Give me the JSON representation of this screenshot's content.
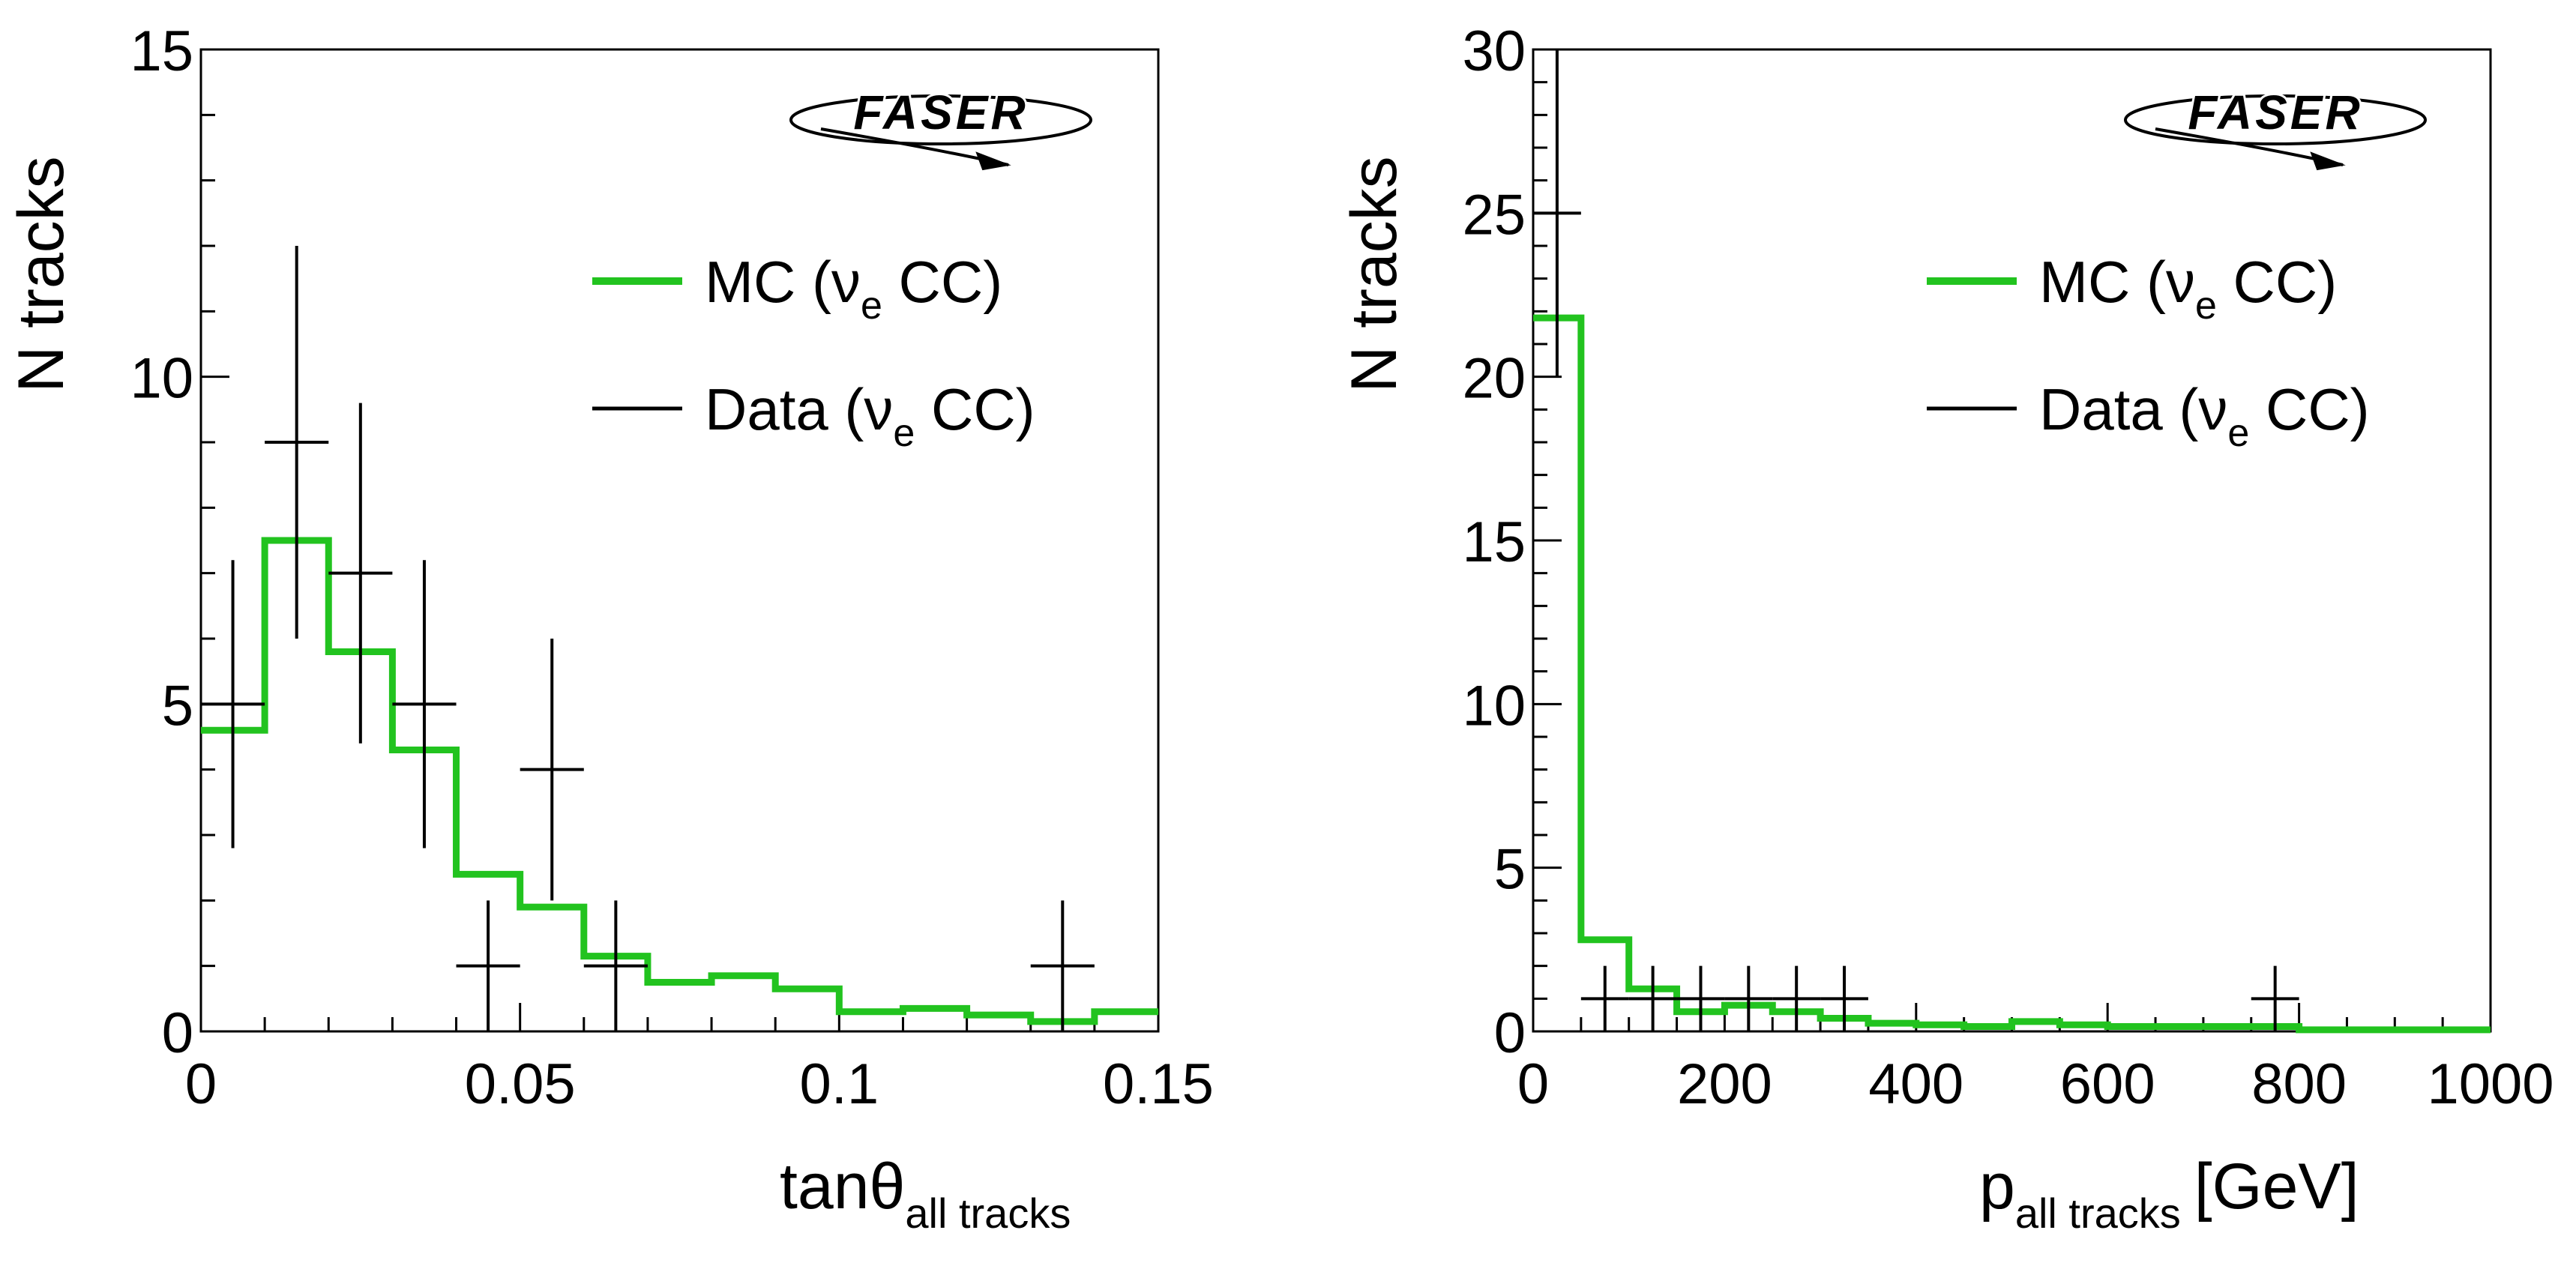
{
  "chart_data": [
    {
      "type": "histogram",
      "xlabel": "tanθ",
      "xlabel_sub": "all tracks",
      "xlabel_unit": "",
      "ylabel": "N tracks",
      "xlim": [
        0,
        0.15
      ],
      "ylim": [
        0,
        15
      ],
      "xticks": [
        {
          "value": 0,
          "label": "0"
        },
        {
          "value": 0.05,
          "label": "0.05"
        },
        {
          "value": 0.1,
          "label": "0.1"
        },
        {
          "value": 0.15,
          "label": "0.15"
        }
      ],
      "yticks": [
        {
          "value": 0,
          "label": "0"
        },
        {
          "value": 5,
          "label": "5"
        },
        {
          "value": 10,
          "label": "10"
        },
        {
          "value": 15,
          "label": "15"
        }
      ],
      "x_minor_step": 0.01,
      "y_minor_step": 1,
      "logo": "FASER",
      "legend": [
        {
          "style": "line",
          "color": "#22c31f",
          "label": "MC (ν",
          "sub": "e",
          "suffix": " CC)"
        },
        {
          "style": "line",
          "color": "#000000",
          "label": "Data (ν",
          "sub": "e",
          "suffix": " CC)"
        }
      ],
      "series": [
        {
          "name": "MC (νe CC)",
          "style": "step",
          "color": "#22c31f",
          "edges": [
            0,
            0.01,
            0.02,
            0.03,
            0.04,
            0.05,
            0.06,
            0.07,
            0.08,
            0.09,
            0.1,
            0.11,
            0.12,
            0.13,
            0.14,
            0.15
          ],
          "values": [
            4.6,
            7.5,
            5.8,
            4.3,
            2.4,
            1.9,
            1.15,
            0.75,
            0.85,
            0.65,
            0.3,
            0.35,
            0.25,
            0.15,
            0.3
          ]
        },
        {
          "name": "Data (νe CC)",
          "style": "errorbar",
          "color": "#000000",
          "points": [
            {
              "x": 0.005,
              "y": 5,
              "xerr": 0.005,
              "ylo": 2.8,
              "yhi": 7.2
            },
            {
              "x": 0.015,
              "y": 9,
              "xerr": 0.005,
              "ylo": 6.0,
              "yhi": 12.0
            },
            {
              "x": 0.025,
              "y": 7,
              "xerr": 0.005,
              "ylo": 4.4,
              "yhi": 9.6
            },
            {
              "x": 0.035,
              "y": 5,
              "xerr": 0.005,
              "ylo": 2.8,
              "yhi": 7.2
            },
            {
              "x": 0.045,
              "y": 1,
              "xerr": 0.005,
              "ylo": 0.0,
              "yhi": 2.0
            },
            {
              "x": 0.055,
              "y": 4,
              "xerr": 0.005,
              "ylo": 2.0,
              "yhi": 6.0
            },
            {
              "x": 0.065,
              "y": 1,
              "xerr": 0.005,
              "ylo": 0.0,
              "yhi": 2.0
            },
            {
              "x": 0.135,
              "y": 1,
              "xerr": 0.005,
              "ylo": 0.0,
              "yhi": 2.0
            }
          ]
        }
      ]
    },
    {
      "type": "histogram",
      "xlabel": "p",
      "xlabel_sub": "all tracks",
      "xlabel_unit": "[GeV]",
      "ylabel": "N tracks",
      "xlim": [
        0,
        1000
      ],
      "ylim": [
        0,
        30
      ],
      "xticks": [
        {
          "value": 0,
          "label": "0"
        },
        {
          "value": 200,
          "label": "200"
        },
        {
          "value": 400,
          "label": "400"
        },
        {
          "value": 600,
          "label": "600"
        },
        {
          "value": 800,
          "label": "800"
        },
        {
          "value": 1000,
          "label": "1000"
        }
      ],
      "yticks": [
        {
          "value": 0,
          "label": "0"
        },
        {
          "value": 5,
          "label": "5"
        },
        {
          "value": 10,
          "label": "10"
        },
        {
          "value": 15,
          "label": "15"
        },
        {
          "value": 20,
          "label": "20"
        },
        {
          "value": 25,
          "label": "25"
        },
        {
          "value": 30,
          "label": "30"
        }
      ],
      "x_minor_step": 50,
      "y_minor_step": 1,
      "logo": "FASER",
      "legend": [
        {
          "style": "line",
          "color": "#22c31f",
          "label": "MC (ν",
          "sub": "e",
          "suffix": " CC)"
        },
        {
          "style": "line",
          "color": "#000000",
          "label": "Data (ν",
          "sub": "e",
          "suffix": " CC)"
        }
      ],
      "series": [
        {
          "name": "MC (νe CC)",
          "style": "step",
          "color": "#22c31f",
          "edges": [
            0,
            50,
            100,
            150,
            200,
            250,
            300,
            350,
            400,
            450,
            500,
            550,
            600,
            650,
            700,
            750,
            800,
            850,
            900,
            950,
            1000
          ],
          "values": [
            21.8,
            2.8,
            1.3,
            0.6,
            0.8,
            0.6,
            0.4,
            0.25,
            0.2,
            0.15,
            0.3,
            0.2,
            0.15,
            0.15,
            0.15,
            0.15,
            0.05,
            0.05,
            0.05,
            0.05
          ]
        },
        {
          "name": "Data (νe CC)",
          "style": "errorbar",
          "color": "#000000",
          "points": [
            {
              "x": 25,
              "y": 25,
              "xerr": 25,
              "ylo": 20.0,
              "yhi": 30.0
            },
            {
              "x": 75,
              "y": 1,
              "xerr": 25,
              "ylo": 0.0,
              "yhi": 2.0
            },
            {
              "x": 125,
              "y": 1,
              "xerr": 25,
              "ylo": 0.0,
              "yhi": 2.0
            },
            {
              "x": 175,
              "y": 1,
              "xerr": 25,
              "ylo": 0.0,
              "yhi": 2.0
            },
            {
              "x": 225,
              "y": 1,
              "xerr": 25,
              "ylo": 0.0,
              "yhi": 2.0
            },
            {
              "x": 275,
              "y": 1,
              "xerr": 25,
              "ylo": 0.0,
              "yhi": 2.0
            },
            {
              "x": 325,
              "y": 1,
              "xerr": 25,
              "ylo": 0.0,
              "yhi": 2.0
            },
            {
              "x": 775,
              "y": 1,
              "xerr": 25,
              "ylo": 0.0,
              "yhi": 2.0
            }
          ]
        }
      ]
    }
  ]
}
